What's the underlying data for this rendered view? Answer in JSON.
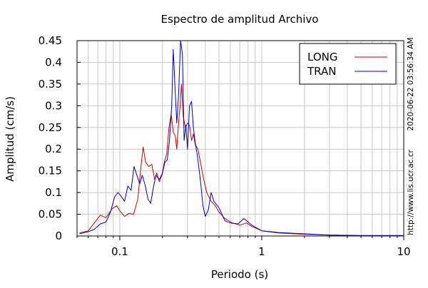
{
  "chart_data": {
    "type": "line",
    "title": "Espectro de amplitud Archivo",
    "xlabel": "Periodo (s)",
    "ylabel": "Amplitud (cm/s)",
    "xscale": "log",
    "xlim": [
      0.05,
      10
    ],
    "ylim": [
      0,
      0.45
    ],
    "xtick_labels": [
      "0.1",
      "1",
      "10"
    ],
    "xtick_values": [
      0.1,
      1,
      10
    ],
    "ytick_labels": [
      "0",
      "0.05",
      "0.1",
      "0.15",
      "0.2",
      "0.25",
      "0.3",
      "0.35",
      "0.4",
      "0.45"
    ],
    "ytick_values": [
      0,
      0.05,
      0.1,
      0.15,
      0.2,
      0.25,
      0.3,
      0.35,
      0.4,
      0.45
    ],
    "grid": true,
    "legend_position": "top-right",
    "series": [
      {
        "name": "LONG",
        "color": "#cc0000",
        "points": [
          [
            0.052,
            0.007
          ],
          [
            0.06,
            0.012
          ],
          [
            0.068,
            0.035
          ],
          [
            0.073,
            0.048
          ],
          [
            0.08,
            0.042
          ],
          [
            0.088,
            0.062
          ],
          [
            0.095,
            0.07
          ],
          [
            0.1,
            0.058
          ],
          [
            0.108,
            0.045
          ],
          [
            0.116,
            0.052
          ],
          [
            0.125,
            0.05
          ],
          [
            0.134,
            0.085
          ],
          [
            0.14,
            0.15
          ],
          [
            0.146,
            0.205
          ],
          [
            0.152,
            0.17
          ],
          [
            0.16,
            0.16
          ],
          [
            0.168,
            0.165
          ],
          [
            0.176,
            0.13
          ],
          [
            0.182,
            0.145
          ],
          [
            0.19,
            0.125
          ],
          [
            0.198,
            0.14
          ],
          [
            0.206,
            0.17
          ],
          [
            0.214,
            0.19
          ],
          [
            0.222,
            0.25
          ],
          [
            0.23,
            0.28
          ],
          [
            0.238,
            0.24
          ],
          [
            0.246,
            0.23
          ],
          [
            0.252,
            0.2
          ],
          [
            0.258,
            0.25
          ],
          [
            0.266,
            0.3
          ],
          [
            0.272,
            0.35
          ],
          [
            0.28,
            0.275
          ],
          [
            0.29,
            0.25
          ],
          [
            0.3,
            0.26
          ],
          [
            0.31,
            0.255
          ],
          [
            0.32,
            0.22
          ],
          [
            0.33,
            0.235
          ],
          [
            0.34,
            0.21
          ],
          [
            0.355,
            0.2
          ],
          [
            0.37,
            0.17
          ],
          [
            0.39,
            0.13
          ],
          [
            0.41,
            0.1
          ],
          [
            0.44,
            0.08
          ],
          [
            0.47,
            0.07
          ],
          [
            0.5,
            0.055
          ],
          [
            0.55,
            0.04
          ],
          [
            0.62,
            0.03
          ],
          [
            0.7,
            0.025
          ],
          [
            0.78,
            0.03
          ],
          [
            0.85,
            0.022
          ],
          [
            1.0,
            0.012
          ],
          [
            1.3,
            0.007
          ],
          [
            2.0,
            0.004
          ],
          [
            3.0,
            0.002
          ],
          [
            5.0,
            0.001
          ],
          [
            10,
            0.001
          ]
        ]
      },
      {
        "name": "TRAN",
        "color": "#0000cc",
        "points": [
          [
            0.052,
            0.005
          ],
          [
            0.06,
            0.01
          ],
          [
            0.066,
            0.015
          ],
          [
            0.073,
            0.028
          ],
          [
            0.08,
            0.032
          ],
          [
            0.086,
            0.055
          ],
          [
            0.092,
            0.09
          ],
          [
            0.097,
            0.1
          ],
          [
            0.103,
            0.09
          ],
          [
            0.108,
            0.08
          ],
          [
            0.114,
            0.115
          ],
          [
            0.12,
            0.105
          ],
          [
            0.126,
            0.16
          ],
          [
            0.132,
            0.14
          ],
          [
            0.138,
            0.12
          ],
          [
            0.144,
            0.14
          ],
          [
            0.15,
            0.12
          ],
          [
            0.158,
            0.085
          ],
          [
            0.165,
            0.075
          ],
          [
            0.172,
            0.11
          ],
          [
            0.18,
            0.14
          ],
          [
            0.19,
            0.13
          ],
          [
            0.2,
            0.145
          ],
          [
            0.208,
            0.17
          ],
          [
            0.216,
            0.175
          ],
          [
            0.224,
            0.22
          ],
          [
            0.232,
            0.3
          ],
          [
            0.238,
            0.43
          ],
          [
            0.245,
            0.34
          ],
          [
            0.252,
            0.26
          ],
          [
            0.26,
            0.33
          ],
          [
            0.268,
            0.45
          ],
          [
            0.276,
            0.42
          ],
          [
            0.284,
            0.22
          ],
          [
            0.292,
            0.255
          ],
          [
            0.3,
            0.2
          ],
          [
            0.31,
            0.3
          ],
          [
            0.32,
            0.31
          ],
          [
            0.33,
            0.25
          ],
          [
            0.34,
            0.215
          ],
          [
            0.35,
            0.19
          ],
          [
            0.36,
            0.16
          ],
          [
            0.372,
            0.12
          ],
          [
            0.385,
            0.07
          ],
          [
            0.4,
            0.045
          ],
          [
            0.42,
            0.06
          ],
          [
            0.44,
            0.1
          ],
          [
            0.46,
            0.08
          ],
          [
            0.5,
            0.065
          ],
          [
            0.55,
            0.035
          ],
          [
            0.6,
            0.03
          ],
          [
            0.68,
            0.028
          ],
          [
            0.75,
            0.04
          ],
          [
            0.85,
            0.025
          ],
          [
            1.0,
            0.012
          ],
          [
            1.3,
            0.008
          ],
          [
            2.0,
            0.005
          ],
          [
            3.0,
            0.002
          ],
          [
            5.0,
            0.001
          ],
          [
            10,
            0.001
          ]
        ]
      }
    ],
    "side_text": [
      "2020-06-22 03:56:34 AM",
      "http://www.lis.ucr.ac.cr"
    ]
  }
}
